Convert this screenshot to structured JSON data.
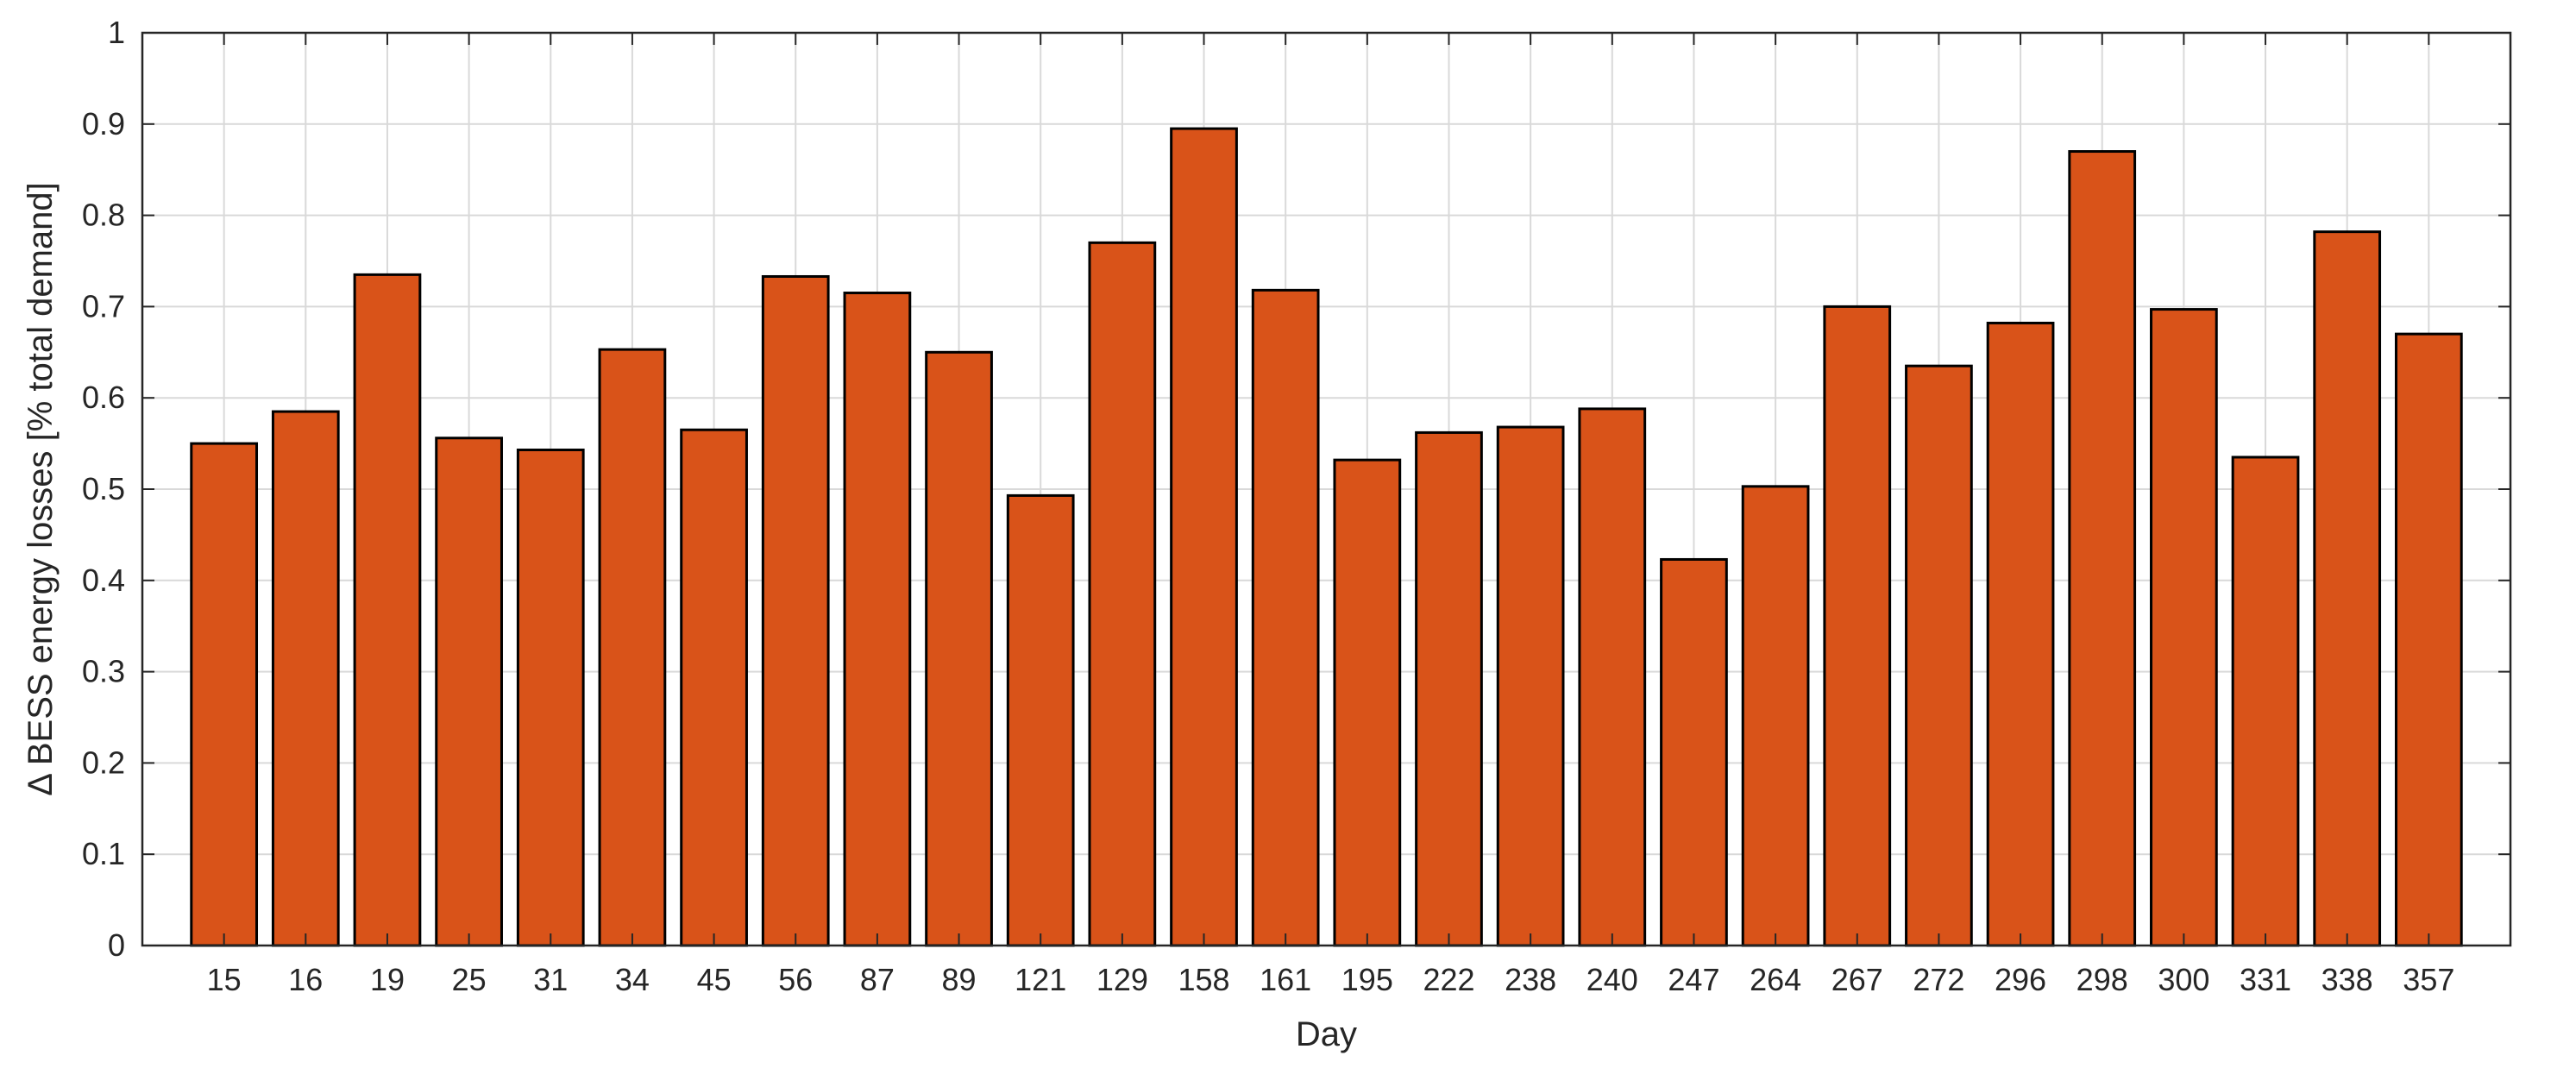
{
  "chart_data": {
    "type": "bar",
    "title": "",
    "xlabel": "Day",
    "ylabel": "Δ BESS energy losses [% total demand]",
    "categories": [
      "15",
      "16",
      "19",
      "25",
      "31",
      "34",
      "45",
      "56",
      "87",
      "89",
      "121",
      "129",
      "158",
      "161",
      "195",
      "222",
      "238",
      "240",
      "247",
      "264",
      "267",
      "272",
      "296",
      "298",
      "300",
      "331",
      "338",
      "357"
    ],
    "values": [
      0.55,
      0.585,
      0.735,
      0.556,
      0.543,
      0.653,
      0.565,
      0.733,
      0.715,
      0.65,
      0.493,
      0.77,
      0.895,
      0.718,
      0.532,
      0.562,
      0.568,
      0.588,
      0.423,
      0.503,
      0.7,
      0.635,
      0.682,
      0.87,
      0.697,
      0.535,
      0.782,
      0.67
    ],
    "ylim": [
      0,
      1
    ],
    "yticks": [
      "0",
      "0.1",
      "0.2",
      "0.3",
      "0.4",
      "0.5",
      "0.6",
      "0.7",
      "0.8",
      "0.9",
      "1"
    ],
    "grid": true,
    "bar_color": "#d95319",
    "edge_color": "#000000"
  }
}
